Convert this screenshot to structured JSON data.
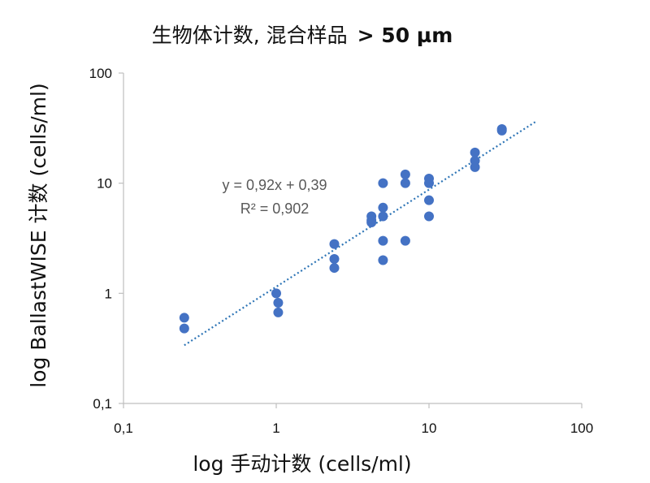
{
  "chart_data": {
    "type": "scatter",
    "title": "生物体计数, 混合样品",
    "title_suffix": "> 50 µm",
    "xlabel": "log 手动计数 (cells/ml)",
    "ylabel": "log BallastWISE 计数 (cells/ml)",
    "x_scale": "log",
    "y_scale": "log",
    "xlim": [
      0.1,
      100
    ],
    "ylim": [
      0.1,
      100
    ],
    "x_ticks": [
      0.1,
      1,
      10,
      100
    ],
    "y_ticks": [
      0.1,
      1,
      10,
      100
    ],
    "x_tick_labels": [
      "0,1",
      "1",
      "10",
      "100"
    ],
    "y_tick_labels": [
      "0,1",
      "1",
      "10",
      "100"
    ],
    "grid": false,
    "legend": "none",
    "marker_color": "#4472C4",
    "trendline_color": "#2E75B6",
    "points": [
      {
        "x": 0.25,
        "y": 0.6
      },
      {
        "x": 0.25,
        "y": 0.48
      },
      {
        "x": 1.0,
        "y": 1.0
      },
      {
        "x": 1.03,
        "y": 0.82
      },
      {
        "x": 1.03,
        "y": 0.67
      },
      {
        "x": 2.4,
        "y": 2.8
      },
      {
        "x": 2.4,
        "y": 2.05
      },
      {
        "x": 2.4,
        "y": 1.7
      },
      {
        "x": 4.2,
        "y": 5.0
      },
      {
        "x": 4.2,
        "y": 4.6
      },
      {
        "x": 4.2,
        "y": 4.4
      },
      {
        "x": 5.0,
        "y": 10.0
      },
      {
        "x": 5.0,
        "y": 6.0
      },
      {
        "x": 5.0,
        "y": 5.0
      },
      {
        "x": 5.0,
        "y": 3.0
      },
      {
        "x": 5.0,
        "y": 2.0
      },
      {
        "x": 7.0,
        "y": 12.0
      },
      {
        "x": 7.0,
        "y": 10.0
      },
      {
        "x": 7.0,
        "y": 3.0
      },
      {
        "x": 10.0,
        "y": 11.0
      },
      {
        "x": 10.0,
        "y": 10.0
      },
      {
        "x": 10.0,
        "y": 7.0
      },
      {
        "x": 10.0,
        "y": 5.0
      },
      {
        "x": 20.0,
        "y": 19.0
      },
      {
        "x": 20.0,
        "y": 16.0
      },
      {
        "x": 20.0,
        "y": 14.0
      },
      {
        "x": 30.0,
        "y": 31.0
      },
      {
        "x": 30.0,
        "y": 30.0
      }
    ],
    "trendline": {
      "type": "power",
      "x_range": [
        0.25,
        50
      ],
      "equation_label": "y = 0,92x + 0,39",
      "r2_label": "R² = 0,902"
    }
  }
}
